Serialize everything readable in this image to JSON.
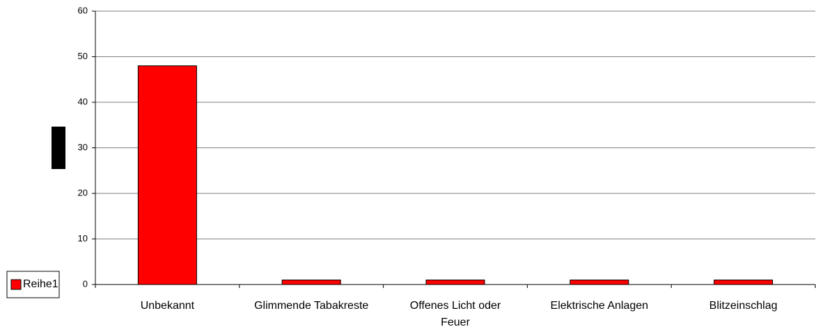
{
  "chart_data": {
    "type": "bar",
    "categories": [
      "Unbekannt",
      "Glimmende Tabakreste",
      "Offenes Licht oder Feuer",
      "Elektrische Anlagen",
      "Blitzeinschlag"
    ],
    "series": [
      {
        "name": "Reihe1",
        "color": "#ff0000",
        "values": [
          48,
          1,
          1,
          1,
          1
        ]
      }
    ],
    "ylim": [
      0,
      60
    ],
    "yticks": [
      0,
      10,
      20,
      30,
      40,
      50,
      60
    ],
    "grid": true,
    "legend": "left"
  }
}
